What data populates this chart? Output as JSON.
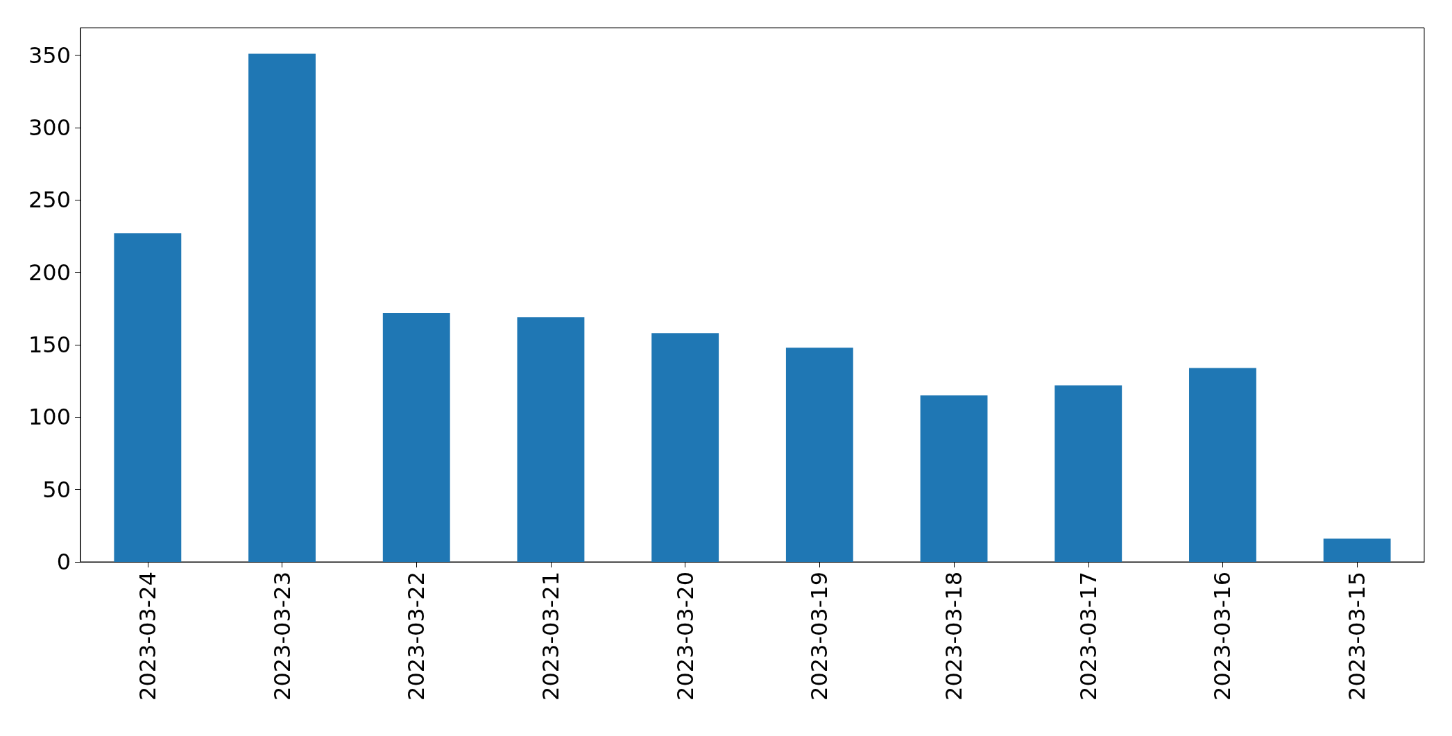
{
  "chart_data": {
    "type": "bar",
    "categories": [
      "2023-03-24",
      "2023-03-23",
      "2023-03-22",
      "2023-03-21",
      "2023-03-20",
      "2023-03-19",
      "2023-03-18",
      "2023-03-17",
      "2023-03-16",
      "2023-03-15"
    ],
    "values": [
      227,
      351,
      172,
      169,
      158,
      148,
      115,
      122,
      134,
      16
    ],
    "color": "#1f77b4",
    "ylim": [
      0,
      369
    ],
    "yticks": [
      0,
      50,
      100,
      150,
      200,
      250,
      300,
      350
    ],
    "grid": false
  }
}
